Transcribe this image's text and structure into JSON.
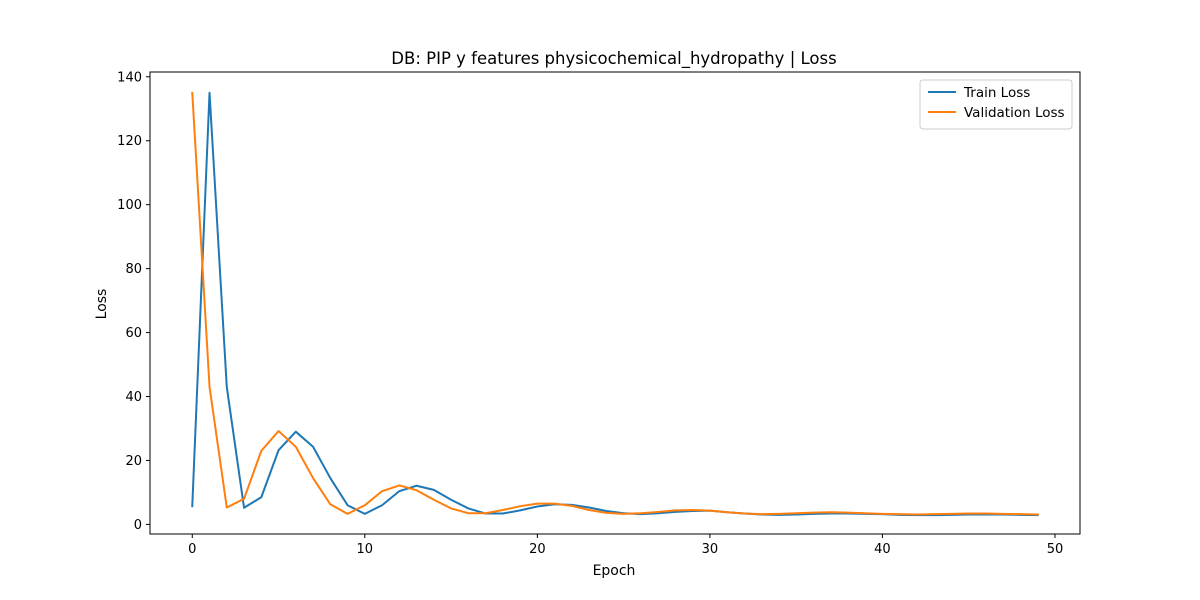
{
  "chart_data": {
    "type": "line",
    "title": "DB: PIP y features physicochemical_hydropathy | Loss",
    "xlabel": "Epoch",
    "ylabel": "Loss",
    "xlim": [
      -2.45,
      51.45
    ],
    "ylim": [
      -3.0,
      141.5
    ],
    "xticks": [
      0,
      10,
      20,
      30,
      40,
      50
    ],
    "yticks": [
      0,
      20,
      40,
      60,
      80,
      100,
      120,
      140
    ],
    "legend_position": "upper-right",
    "grid": false,
    "x": [
      0,
      1,
      2,
      3,
      4,
      5,
      6,
      7,
      8,
      9,
      10,
      11,
      12,
      13,
      14,
      15,
      16,
      17,
      18,
      19,
      20,
      21,
      22,
      23,
      24,
      25,
      26,
      27,
      28,
      29,
      30,
      31,
      32,
      33,
      34,
      35,
      36,
      37,
      38,
      39,
      40,
      41,
      42,
      43,
      44,
      45,
      46,
      47,
      48,
      49
    ],
    "series": [
      {
        "name": "Train Loss",
        "color": "#1f77b4",
        "values": [
          5.7,
          135.0,
          43.0,
          5.2,
          8.5,
          23.2,
          29.0,
          24.3,
          14.5,
          6.0,
          3.3,
          6.0,
          10.4,
          12.1,
          10.8,
          7.7,
          5.0,
          3.4,
          3.4,
          4.4,
          5.6,
          6.3,
          6.1,
          5.3,
          4.2,
          3.5,
          3.2,
          3.5,
          3.9,
          4.2,
          4.3,
          3.8,
          3.4,
          3.1,
          3.0,
          3.1,
          3.3,
          3.4,
          3.4,
          3.3,
          3.2,
          3.0,
          2.9,
          2.9,
          3.0,
          3.1,
          3.1,
          3.1,
          3.0,
          2.9
        ]
      },
      {
        "name": "Validation Loss",
        "color": "#ff7f0e",
        "values": [
          135.0,
          43.0,
          5.3,
          8.0,
          23.0,
          29.2,
          24.3,
          14.5,
          6.3,
          3.3,
          6.0,
          10.4,
          12.2,
          10.7,
          7.7,
          5.0,
          3.5,
          3.5,
          4.5,
          5.7,
          6.5,
          6.5,
          5.8,
          4.5,
          3.6,
          3.3,
          3.5,
          3.9,
          4.4,
          4.5,
          4.3,
          3.8,
          3.4,
          3.2,
          3.3,
          3.5,
          3.7,
          3.8,
          3.7,
          3.5,
          3.3,
          3.2,
          3.1,
          3.2,
          3.3,
          3.4,
          3.4,
          3.3,
          3.2,
          3.1
        ]
      }
    ]
  }
}
